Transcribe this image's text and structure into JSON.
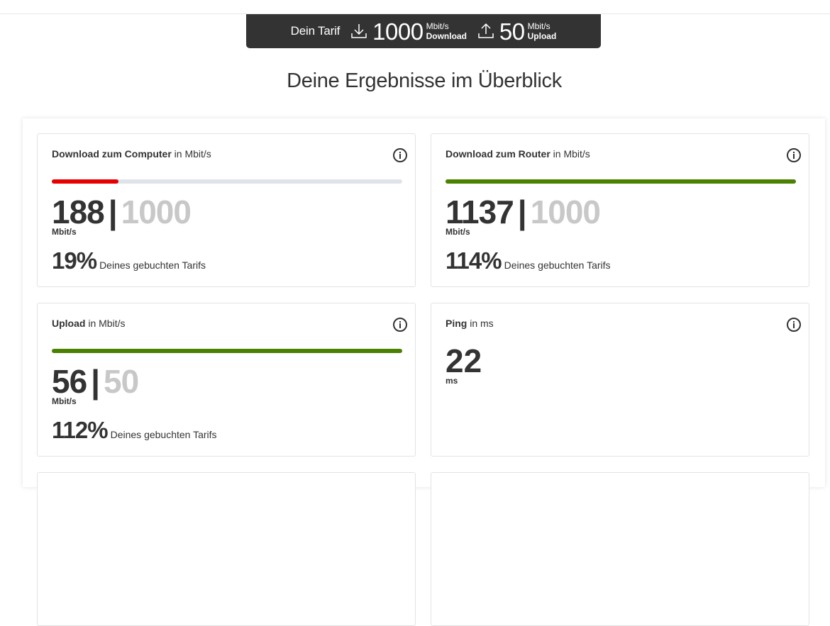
{
  "tariff": {
    "label": "Dein Tarif",
    "download_value": "1000",
    "download_unit": "Mbit/s",
    "download_label": "Download",
    "upload_value": "50",
    "upload_unit": "Mbit/s",
    "upload_label": "Upload"
  },
  "heading": "Deine Ergebnisse im Überblick",
  "colors": {
    "red": "#e60000",
    "green": "#4a8100",
    "track": "#dfe4ea",
    "dark": "#333333"
  },
  "cards": {
    "download_computer": {
      "title_bold": "Download zum Computer",
      "title_unit": " in Mbit/s",
      "value": "188",
      "separator": "|",
      "target": "1000",
      "unit": "Mbit/s",
      "percent": "19%",
      "percent_text": "Deines gebuchten Tarifs",
      "progress": 0.19
    },
    "download_router": {
      "title_bold": "Download zum Router",
      "title_unit": " in Mbit/s",
      "value": "1137",
      "separator": "|",
      "target": "1000",
      "unit": "Mbit/s",
      "percent": "114%",
      "percent_text": "Deines gebuchten Tarifs",
      "progress": 1.0
    },
    "upload": {
      "title_bold": "Upload",
      "title_unit": " in Mbit/s",
      "value": "56",
      "separator": "|",
      "target": "50",
      "unit": "Mbit/s",
      "percent": "112%",
      "percent_text": "Deines gebuchten Tarifs",
      "progress": 1.0
    },
    "ping": {
      "title_bold": "Ping",
      "title_unit": " in ms",
      "value": "22",
      "unit": "ms"
    }
  }
}
